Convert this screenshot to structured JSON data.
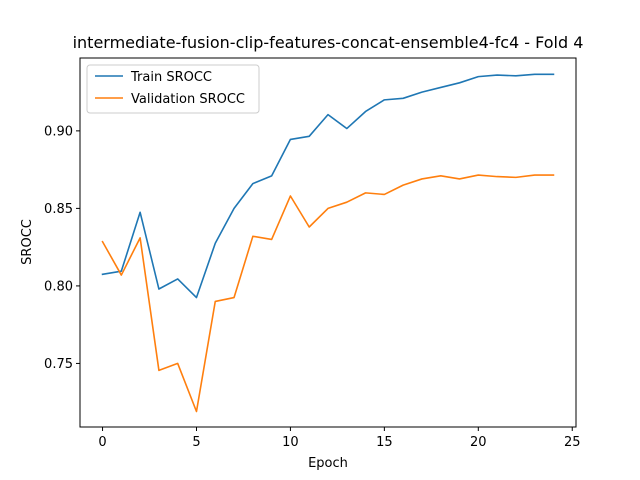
{
  "chart_data": {
    "type": "line",
    "title": "intermediate-fusion-clip-features-concat-ensemble4-fc4 - Fold 4",
    "xlabel": "Epoch",
    "ylabel": "SROCC",
    "xlim": [
      -1.2,
      25.2
    ],
    "ylim": [
      0.709,
      0.947
    ],
    "xticks": [
      0,
      5,
      10,
      15,
      20,
      25
    ],
    "yticks": [
      0.75,
      0.8,
      0.85,
      0.9
    ],
    "xtick_labels": [
      "0",
      "5",
      "10",
      "15",
      "20",
      "25"
    ],
    "ytick_labels": [
      "0.75",
      "0.80",
      "0.85",
      "0.90"
    ],
    "legend_position": "top-left",
    "x": [
      0,
      1,
      2,
      3,
      4,
      5,
      6,
      7,
      8,
      9,
      10,
      11,
      12,
      13,
      14,
      15,
      16,
      17,
      18,
      19,
      20,
      21,
      22,
      23,
      24
    ],
    "series": [
      {
        "name": "Train SROCC",
        "color": "#1f77b4",
        "values": [
          0.8075,
          0.8095,
          0.8475,
          0.798,
          0.8045,
          0.7925,
          0.8275,
          0.85,
          0.866,
          0.871,
          0.8945,
          0.8965,
          0.9105,
          0.9015,
          0.9125,
          0.92,
          0.921,
          0.925,
          0.928,
          0.931,
          0.935,
          0.936,
          0.9355,
          0.9365,
          0.9365
        ]
      },
      {
        "name": "Validation SROCC",
        "color": "#ff7f0e",
        "values": [
          0.8285,
          0.807,
          0.831,
          0.7455,
          0.75,
          0.719,
          0.79,
          0.7925,
          0.832,
          0.83,
          0.858,
          0.838,
          0.85,
          0.854,
          0.86,
          0.859,
          0.865,
          0.869,
          0.871,
          0.869,
          0.8715,
          0.8705,
          0.87,
          0.8715,
          0.8715
        ]
      }
    ]
  }
}
